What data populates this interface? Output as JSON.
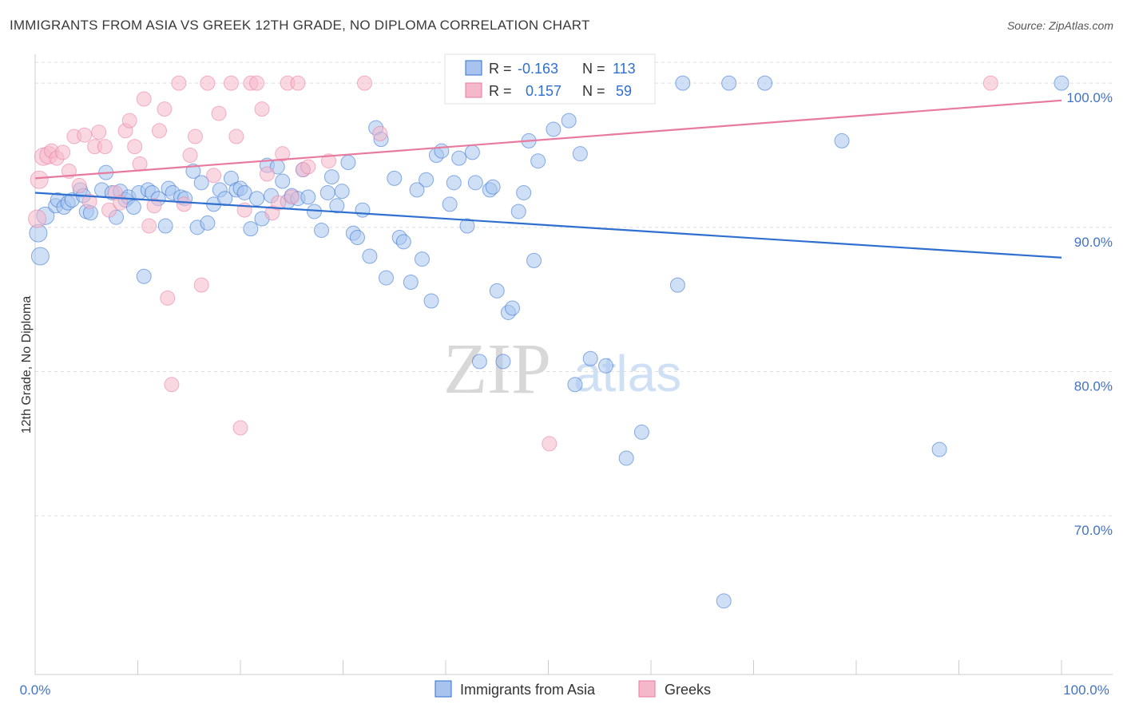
{
  "title": "IMMIGRANTS FROM ASIA VS GREEK 12TH GRADE, NO DIPLOMA CORRELATION CHART",
  "source": "Source: ZipAtlas.com",
  "colors": {
    "blue": "#2f6fd0",
    "pink": "#e87aa0",
    "blue_fill": "#a8c4ee",
    "pink_fill": "#f5b8cb",
    "grid": "#dddddd"
  },
  "watermark": {
    "zip": "ZIP",
    "atlas": "atlas"
  },
  "legend": {
    "r_label": "R =",
    "n_label": "N =",
    "rows": [
      {
        "r": "-0.163",
        "n": "113"
      },
      {
        "r": "0.157",
        "n": "59"
      }
    ]
  },
  "chart_data": {
    "type": "scatter",
    "xlabel": "",
    "ylabel": "12th Grade, No Diploma",
    "xlim": [
      0,
      100
    ],
    "ylim": [
      59,
      102
    ],
    "x_tick_labels": [
      "0.0%",
      "100.0%"
    ],
    "y_ticks": [
      {
        "value": 100,
        "label": "100.0%"
      },
      {
        "value": 90,
        "label": "90.0%"
      },
      {
        "value": 80,
        "label": "80.0%"
      },
      {
        "value": 70,
        "label": "70.0%"
      }
    ],
    "grid": true,
    "legend_position": "top-center",
    "series": [
      {
        "name": "Immigrants from Asia",
        "color": "#2f6fd0",
        "trend": {
          "x": [
            0,
            100
          ],
          "y": [
            92.4,
            87.9
          ]
        },
        "points": [
          [
            0.3,
            89.6
          ],
          [
            0.5,
            88.0
          ],
          [
            1.0,
            90.8
          ],
          [
            2.0,
            91.5
          ],
          [
            2.2,
            91.9
          ],
          [
            2.8,
            91.4
          ],
          [
            3.2,
            91.7
          ],
          [
            3.6,
            91.9
          ],
          [
            4.4,
            92.6
          ],
          [
            4.7,
            92.2
          ],
          [
            5.0,
            91.1
          ],
          [
            5.4,
            91.0
          ],
          [
            6.5,
            92.6
          ],
          [
            6.9,
            93.8
          ],
          [
            7.5,
            92.4
          ],
          [
            7.9,
            90.7
          ],
          [
            8.3,
            92.5
          ],
          [
            8.8,
            91.9
          ],
          [
            9.1,
            92.1
          ],
          [
            9.6,
            91.4
          ],
          [
            10.1,
            92.4
          ],
          [
            10.6,
            86.6
          ],
          [
            11.0,
            92.6
          ],
          [
            11.4,
            92.4
          ],
          [
            12.0,
            92.0
          ],
          [
            12.7,
            90.1
          ],
          [
            13.0,
            92.7
          ],
          [
            13.4,
            92.4
          ],
          [
            14.2,
            92.1
          ],
          [
            14.6,
            92.0
          ],
          [
            15.4,
            93.9
          ],
          [
            15.8,
            90.0
          ],
          [
            16.2,
            93.1
          ],
          [
            16.8,
            90.3
          ],
          [
            17.4,
            91.6
          ],
          [
            18.0,
            92.6
          ],
          [
            18.5,
            92.0
          ],
          [
            19.1,
            93.4
          ],
          [
            19.6,
            92.6
          ],
          [
            20.0,
            92.7
          ],
          [
            20.4,
            92.4
          ],
          [
            21.0,
            89.9
          ],
          [
            21.6,
            92.0
          ],
          [
            22.1,
            90.6
          ],
          [
            22.6,
            94.3
          ],
          [
            23.0,
            92.2
          ],
          [
            23.6,
            94.2
          ],
          [
            24.1,
            93.2
          ],
          [
            24.6,
            91.8
          ],
          [
            25.0,
            92.2
          ],
          [
            25.6,
            92.0
          ],
          [
            26.1,
            94.0
          ],
          [
            26.6,
            92.1
          ],
          [
            27.2,
            91.1
          ],
          [
            27.9,
            89.8
          ],
          [
            28.5,
            92.4
          ],
          [
            28.9,
            93.5
          ],
          [
            29.4,
            91.5
          ],
          [
            29.9,
            92.5
          ],
          [
            30.5,
            94.5
          ],
          [
            31.0,
            89.6
          ],
          [
            31.4,
            89.3
          ],
          [
            31.9,
            91.2
          ],
          [
            32.6,
            88.0
          ],
          [
            33.2,
            96.9
          ],
          [
            33.7,
            96.1
          ],
          [
            34.2,
            86.5
          ],
          [
            35.0,
            93.4
          ],
          [
            35.5,
            89.3
          ],
          [
            35.9,
            89.0
          ],
          [
            36.6,
            86.2
          ],
          [
            37.2,
            92.6
          ],
          [
            37.7,
            87.8
          ],
          [
            38.1,
            93.3
          ],
          [
            38.6,
            84.9
          ],
          [
            39.1,
            95.0
          ],
          [
            39.6,
            95.3
          ],
          [
            40.4,
            91.6
          ],
          [
            40.8,
            93.1
          ],
          [
            41.3,
            94.8
          ],
          [
            42.1,
            90.1
          ],
          [
            42.6,
            95.2
          ],
          [
            42.9,
            93.1
          ],
          [
            43.3,
            80.7
          ],
          [
            44.3,
            92.6
          ],
          [
            44.6,
            92.8
          ],
          [
            45.0,
            85.6
          ],
          [
            45.6,
            80.7
          ],
          [
            46.1,
            84.1
          ],
          [
            46.5,
            84.4
          ],
          [
            47.1,
            91.1
          ],
          [
            47.6,
            92.4
          ],
          [
            48.1,
            96.0
          ],
          [
            48.6,
            87.7
          ],
          [
            49.0,
            94.6
          ],
          [
            50.5,
            96.8
          ],
          [
            51.4,
            100.0
          ],
          [
            52.0,
            97.4
          ],
          [
            52.6,
            79.1
          ],
          [
            53.1,
            95.1
          ],
          [
            54.1,
            80.9
          ],
          [
            55.6,
            80.4
          ],
          [
            57.6,
            74.0
          ],
          [
            59.1,
            75.8
          ],
          [
            59.6,
            100.0
          ],
          [
            62.6,
            86.0
          ],
          [
            63.1,
            100.0
          ],
          [
            67.1,
            64.1
          ],
          [
            67.6,
            100.0
          ],
          [
            71.1,
            100.0
          ],
          [
            78.6,
            96.0
          ],
          [
            88.1,
            74.6
          ],
          [
            100.0,
            100.0
          ]
        ]
      },
      {
        "name": "Greeks",
        "color": "#e87aa0",
        "trend": {
          "x": [
            0,
            100
          ],
          "y": [
            93.4,
            98.8
          ]
        },
        "points": [
          [
            0.2,
            90.6
          ],
          [
            0.4,
            93.3
          ],
          [
            0.8,
            94.9
          ],
          [
            1.3,
            95.0
          ],
          [
            1.6,
            95.3
          ],
          [
            2.1,
            94.8
          ],
          [
            2.7,
            95.2
          ],
          [
            3.3,
            93.9
          ],
          [
            3.8,
            96.3
          ],
          [
            4.3,
            92.9
          ],
          [
            4.8,
            96.4
          ],
          [
            5.3,
            91.8
          ],
          [
            5.8,
            95.6
          ],
          [
            6.2,
            96.6
          ],
          [
            6.8,
            95.6
          ],
          [
            7.2,
            91.2
          ],
          [
            7.8,
            92.4
          ],
          [
            8.3,
            91.7
          ],
          [
            8.8,
            96.7
          ],
          [
            9.2,
            97.4
          ],
          [
            9.7,
            95.6
          ],
          [
            10.2,
            94.4
          ],
          [
            10.6,
            98.9
          ],
          [
            11.1,
            90.1
          ],
          [
            11.6,
            91.5
          ],
          [
            12.1,
            96.7
          ],
          [
            12.6,
            98.2
          ],
          [
            12.9,
            85.1
          ],
          [
            13.3,
            79.1
          ],
          [
            14.0,
            100.0
          ],
          [
            14.5,
            91.6
          ],
          [
            15.1,
            95.0
          ],
          [
            15.6,
            96.3
          ],
          [
            16.2,
            86.0
          ],
          [
            16.8,
            100.0
          ],
          [
            17.4,
            93.6
          ],
          [
            17.9,
            97.9
          ],
          [
            19.1,
            100.0
          ],
          [
            19.6,
            96.3
          ],
          [
            20.0,
            76.1
          ],
          [
            20.4,
            91.2
          ],
          [
            21.0,
            100.0
          ],
          [
            21.6,
            100.0
          ],
          [
            22.1,
            98.2
          ],
          [
            22.6,
            93.7
          ],
          [
            23.1,
            91.0
          ],
          [
            23.7,
            91.7
          ],
          [
            24.1,
            95.1
          ],
          [
            24.6,
            100.0
          ],
          [
            25.0,
            92.1
          ],
          [
            25.6,
            100.0
          ],
          [
            26.1,
            94.0
          ],
          [
            26.6,
            94.2
          ],
          [
            28.6,
            94.6
          ],
          [
            32.1,
            100.0
          ],
          [
            33.6,
            96.5
          ],
          [
            41.1,
            100.0
          ],
          [
            50.1,
            75.0
          ],
          [
            93.1,
            100.0
          ]
        ]
      }
    ]
  }
}
